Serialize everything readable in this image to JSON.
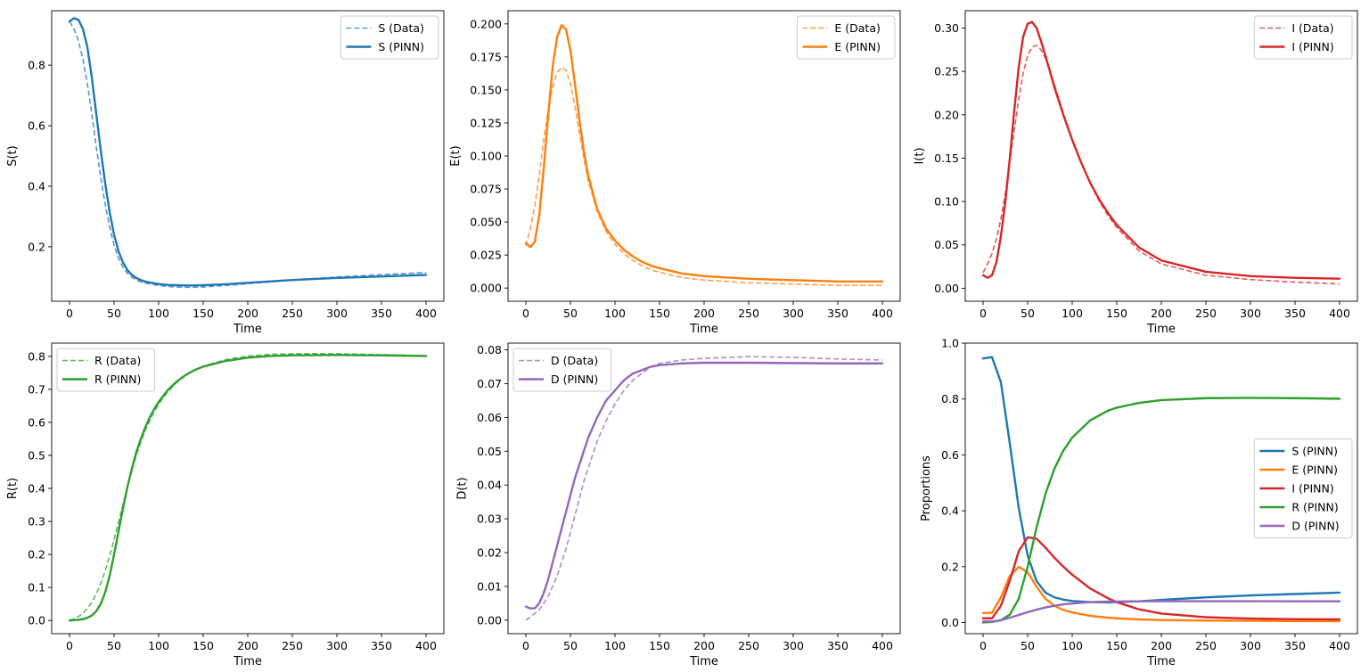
{
  "chart_data": [
    {
      "type": "line",
      "id": "s",
      "xlabel": "Time",
      "ylabel": "S(t)",
      "xlim": [
        -20,
        420
      ],
      "ylim": [
        0.02,
        0.98
      ],
      "xticks": [
        0,
        50,
        100,
        150,
        200,
        250,
        300,
        350,
        400
      ],
      "xtick_labels": [
        "0",
        "50",
        "100",
        "150",
        "200",
        "250",
        "300",
        "350",
        "400"
      ],
      "yticks": [
        0.2,
        0.4,
        0.6,
        0.8
      ],
      "ytick_labels": [
        "0.2",
        "0.4",
        "0.6",
        "0.8"
      ],
      "legend_position": "upper right",
      "x": [
        0,
        5,
        10,
        15,
        20,
        25,
        30,
        35,
        40,
        45,
        50,
        55,
        60,
        65,
        70,
        75,
        80,
        85,
        90,
        100,
        110,
        120,
        130,
        140,
        150,
        175,
        200,
        250,
        300,
        350,
        400
      ],
      "series": [
        {
          "name": "S (Data)",
          "color": "#1f77b4",
          "dash": true,
          "values": [
            0.945,
            0.92,
            0.88,
            0.82,
            0.74,
            0.64,
            0.53,
            0.43,
            0.34,
            0.265,
            0.205,
            0.162,
            0.132,
            0.112,
            0.099,
            0.09,
            0.084,
            0.08,
            0.077,
            0.072,
            0.069,
            0.067,
            0.066,
            0.066,
            0.067,
            0.072,
            0.078,
            0.09,
            0.1,
            0.108,
            0.115
          ]
        },
        {
          "name": "S (PINN)",
          "color": "#1f77b4",
          "dash": false,
          "values": [
            0.945,
            0.955,
            0.95,
            0.92,
            0.86,
            0.76,
            0.64,
            0.52,
            0.41,
            0.315,
            0.24,
            0.185,
            0.148,
            0.123,
            0.107,
            0.097,
            0.09,
            0.085,
            0.082,
            0.077,
            0.074,
            0.073,
            0.072,
            0.072,
            0.073,
            0.076,
            0.081,
            0.09,
            0.097,
            0.102,
            0.107
          ]
        }
      ]
    },
    {
      "type": "line",
      "id": "e",
      "xlabel": "Time",
      "ylabel": "E(t)",
      "xlim": [
        -20,
        420
      ],
      "ylim": [
        -0.01,
        0.21
      ],
      "xticks": [
        0,
        50,
        100,
        150,
        200,
        250,
        300,
        350,
        400
      ],
      "xtick_labels": [
        "0",
        "50",
        "100",
        "150",
        "200",
        "250",
        "300",
        "350",
        "400"
      ],
      "yticks": [
        0,
        0.025,
        0.05,
        0.075,
        0.1,
        0.125,
        0.15,
        0.175,
        0.2
      ],
      "ytick_labels": [
        "0.000",
        "0.025",
        "0.050",
        "0.075",
        "0.100",
        "0.125",
        "0.150",
        "0.175",
        "0.200"
      ],
      "legend_position": "upper right",
      "x": [
        0,
        5,
        10,
        15,
        20,
        25,
        30,
        35,
        40,
        45,
        50,
        55,
        60,
        65,
        70,
        80,
        90,
        100,
        110,
        120,
        130,
        140,
        150,
        175,
        200,
        250,
        300,
        350,
        400
      ],
      "series": [
        {
          "name": "E (Data)",
          "color": "#ff7f0e",
          "dash": true,
          "values": [
            0.032,
            0.045,
            0.062,
            0.085,
            0.112,
            0.135,
            0.152,
            0.163,
            0.167,
            0.165,
            0.155,
            0.138,
            0.118,
            0.098,
            0.081,
            0.058,
            0.043,
            0.033,
            0.026,
            0.021,
            0.017,
            0.014,
            0.012,
            0.008,
            0.006,
            0.004,
            0.003,
            0.002,
            0.002
          ]
        },
        {
          "name": "E (PINN)",
          "color": "#ff7f0e",
          "dash": false,
          "values": [
            0.034,
            0.031,
            0.035,
            0.055,
            0.09,
            0.13,
            0.167,
            0.19,
            0.199,
            0.196,
            0.18,
            0.155,
            0.128,
            0.104,
            0.085,
            0.06,
            0.045,
            0.036,
            0.029,
            0.024,
            0.02,
            0.017,
            0.015,
            0.011,
            0.009,
            0.007,
            0.006,
            0.005,
            0.005
          ]
        }
      ]
    },
    {
      "type": "line",
      "id": "i",
      "xlabel": "Time",
      "ylabel": "I(t)",
      "xlim": [
        -20,
        420
      ],
      "ylim": [
        -0.015,
        0.32
      ],
      "xticks": [
        0,
        50,
        100,
        150,
        200,
        250,
        300,
        350,
        400
      ],
      "xtick_labels": [
        "0",
        "50",
        "100",
        "150",
        "200",
        "250",
        "300",
        "350",
        "400"
      ],
      "yticks": [
        0,
        0.05,
        0.1,
        0.15,
        0.2,
        0.25,
        0.3
      ],
      "ytick_labels": [
        "0.00",
        "0.05",
        "0.10",
        "0.15",
        "0.20",
        "0.25",
        "0.30"
      ],
      "legend_position": "upper right",
      "x": [
        0,
        5,
        10,
        15,
        20,
        25,
        30,
        35,
        40,
        45,
        50,
        55,
        60,
        65,
        70,
        75,
        80,
        90,
        100,
        110,
        120,
        130,
        140,
        150,
        175,
        200,
        250,
        300,
        350,
        400
      ],
      "series": [
        {
          "name": "I (Data)",
          "color": "#d62728",
          "dash": true,
          "values": [
            0.018,
            0.028,
            0.04,
            0.057,
            0.08,
            0.11,
            0.145,
            0.182,
            0.218,
            0.248,
            0.268,
            0.278,
            0.28,
            0.275,
            0.265,
            0.25,
            0.235,
            0.202,
            0.172,
            0.145,
            0.121,
            0.101,
            0.084,
            0.07,
            0.043,
            0.028,
            0.015,
            0.01,
            0.007,
            0.005
          ]
        },
        {
          "name": "I (PINN)",
          "color": "#d62728",
          "dash": false,
          "values": [
            0.015,
            0.012,
            0.015,
            0.03,
            0.06,
            0.1,
            0.15,
            0.205,
            0.255,
            0.29,
            0.305,
            0.307,
            0.3,
            0.285,
            0.268,
            0.25,
            0.232,
            0.2,
            0.171,
            0.145,
            0.122,
            0.103,
            0.087,
            0.073,
            0.047,
            0.032,
            0.019,
            0.014,
            0.012,
            0.011
          ]
        }
      ]
    },
    {
      "type": "line",
      "id": "r",
      "xlabel": "Time",
      "ylabel": "R(t)",
      "xlim": [
        -20,
        420
      ],
      "ylim": [
        -0.04,
        0.84
      ],
      "xticks": [
        0,
        50,
        100,
        150,
        200,
        250,
        300,
        350,
        400
      ],
      "xtick_labels": [
        "0",
        "50",
        "100",
        "150",
        "200",
        "250",
        "300",
        "350",
        "400"
      ],
      "yticks": [
        0,
        0.1,
        0.2,
        0.3,
        0.4,
        0.5,
        0.6,
        0.7,
        0.8
      ],
      "ytick_labels": [
        "0.0",
        "0.1",
        "0.2",
        "0.3",
        "0.4",
        "0.5",
        "0.6",
        "0.7",
        "0.8"
      ],
      "legend_position": "upper left",
      "x": [
        0,
        5,
        10,
        15,
        20,
        25,
        30,
        35,
        40,
        45,
        50,
        55,
        60,
        65,
        70,
        75,
        80,
        85,
        90,
        95,
        100,
        110,
        120,
        130,
        140,
        150,
        175,
        200,
        225,
        250,
        300,
        350,
        400
      ],
      "series": [
        {
          "name": "R (Data)",
          "color": "#2ca02c",
          "dash": true,
          "values": [
            0.0,
            0.005,
            0.012,
            0.022,
            0.036,
            0.055,
            0.08,
            0.112,
            0.15,
            0.195,
            0.245,
            0.298,
            0.352,
            0.405,
            0.455,
            0.5,
            0.54,
            0.575,
            0.605,
            0.632,
            0.655,
            0.692,
            0.72,
            0.742,
            0.758,
            0.77,
            0.79,
            0.801,
            0.806,
            0.808,
            0.808,
            0.805,
            0.802
          ]
        },
        {
          "name": "R (PINN)",
          "color": "#2ca02c",
          "dash": false,
          "values": [
            0.0,
            0.001,
            0.002,
            0.004,
            0.008,
            0.015,
            0.028,
            0.05,
            0.085,
            0.135,
            0.2,
            0.27,
            0.34,
            0.405,
            0.46,
            0.51,
            0.55,
            0.585,
            0.615,
            0.64,
            0.662,
            0.697,
            0.723,
            0.743,
            0.758,
            0.769,
            0.786,
            0.796,
            0.801,
            0.803,
            0.804,
            0.803,
            0.801
          ]
        }
      ]
    },
    {
      "type": "line",
      "id": "d",
      "xlabel": "Time",
      "ylabel": "D(t)",
      "xlim": [
        -20,
        420
      ],
      "ylim": [
        -0.004,
        0.082
      ],
      "xticks": [
        0,
        50,
        100,
        150,
        200,
        250,
        300,
        350,
        400
      ],
      "xtick_labels": [
        "0",
        "50",
        "100",
        "150",
        "200",
        "250",
        "300",
        "350",
        "400"
      ],
      "yticks": [
        0,
        0.01,
        0.02,
        0.03,
        0.04,
        0.05,
        0.06,
        0.07,
        0.08
      ],
      "ytick_labels": [
        "0.00",
        "0.01",
        "0.02",
        "0.03",
        "0.04",
        "0.05",
        "0.06",
        "0.07",
        "0.08"
      ],
      "legend_position": "upper left",
      "x": [
        0,
        5,
        10,
        15,
        20,
        25,
        30,
        35,
        40,
        45,
        50,
        55,
        60,
        65,
        70,
        75,
        80,
        90,
        100,
        110,
        120,
        130,
        140,
        150,
        175,
        200,
        250,
        300,
        350,
        400
      ],
      "series": [
        {
          "name": "D (Data)",
          "color": "#9467bd",
          "dash": true,
          "values": [
            0.0,
            0.001,
            0.002,
            0.003,
            0.005,
            0.007,
            0.01,
            0.013,
            0.017,
            0.021,
            0.026,
            0.031,
            0.036,
            0.041,
            0.045,
            0.049,
            0.053,
            0.059,
            0.064,
            0.068,
            0.071,
            0.073,
            0.075,
            0.076,
            0.077,
            0.0775,
            0.078,
            0.0778,
            0.0773,
            0.077
          ]
        },
        {
          "name": "D (PINN)",
          "color": "#9467bd",
          "dash": false,
          "values": [
            0.004,
            0.0035,
            0.0035,
            0.005,
            0.008,
            0.012,
            0.017,
            0.022,
            0.027,
            0.032,
            0.037,
            0.042,
            0.046,
            0.05,
            0.054,
            0.057,
            0.06,
            0.065,
            0.068,
            0.071,
            0.073,
            0.074,
            0.075,
            0.0755,
            0.076,
            0.0762,
            0.0762,
            0.0761,
            0.076,
            0.076
          ]
        }
      ]
    },
    {
      "type": "line",
      "id": "all",
      "xlabel": "Time",
      "ylabel": "Proportions",
      "xlim": [
        -20,
        420
      ],
      "ylim": [
        -0.04,
        1.0
      ],
      "xticks": [
        0,
        50,
        100,
        150,
        200,
        250,
        300,
        350,
        400
      ],
      "xtick_labels": [
        "0",
        "50",
        "100",
        "150",
        "200",
        "250",
        "300",
        "350",
        "400"
      ],
      "yticks": [
        0,
        0.2,
        0.4,
        0.6,
        0.8,
        1.0
      ],
      "ytick_labels": [
        "0.0",
        "0.2",
        "0.4",
        "0.6",
        "0.8",
        "1.0"
      ],
      "legend_position": "center right",
      "x": [
        0,
        10,
        20,
        30,
        40,
        50,
        60,
        70,
        80,
        90,
        100,
        120,
        140,
        150,
        175,
        200,
        250,
        300,
        350,
        400
      ],
      "series": [
        {
          "name": "S (PINN)",
          "color": "#1f77b4",
          "dash": false,
          "values": [
            0.945,
            0.95,
            0.86,
            0.64,
            0.41,
            0.24,
            0.148,
            0.107,
            0.09,
            0.082,
            0.077,
            0.073,
            0.072,
            0.073,
            0.076,
            0.081,
            0.09,
            0.097,
            0.102,
            0.107
          ]
        },
        {
          "name": "E (PINN)",
          "color": "#ff7f0e",
          "dash": false,
          "values": [
            0.034,
            0.035,
            0.09,
            0.167,
            0.199,
            0.18,
            0.128,
            0.085,
            0.06,
            0.045,
            0.036,
            0.024,
            0.017,
            0.015,
            0.011,
            0.009,
            0.007,
            0.006,
            0.005,
            0.005
          ]
        },
        {
          "name": "I (PINN)",
          "color": "#d62728",
          "dash": false,
          "values": [
            0.015,
            0.015,
            0.06,
            0.15,
            0.255,
            0.305,
            0.3,
            0.268,
            0.232,
            0.2,
            0.171,
            0.122,
            0.087,
            0.073,
            0.047,
            0.032,
            0.019,
            0.014,
            0.012,
            0.011
          ]
        },
        {
          "name": "R (PINN)",
          "color": "#2ca02c",
          "dash": false,
          "values": [
            0.0,
            0.002,
            0.008,
            0.028,
            0.085,
            0.2,
            0.34,
            0.46,
            0.55,
            0.615,
            0.662,
            0.723,
            0.758,
            0.769,
            0.786,
            0.796,
            0.803,
            0.804,
            0.803,
            0.801
          ]
        },
        {
          "name": "D (PINN)",
          "color": "#9467bd",
          "dash": false,
          "values": [
            0.004,
            0.0035,
            0.008,
            0.017,
            0.027,
            0.037,
            0.046,
            0.054,
            0.06,
            0.065,
            0.068,
            0.073,
            0.075,
            0.0755,
            0.076,
            0.0762,
            0.0762,
            0.0761,
            0.076,
            0.076
          ]
        }
      ]
    }
  ]
}
